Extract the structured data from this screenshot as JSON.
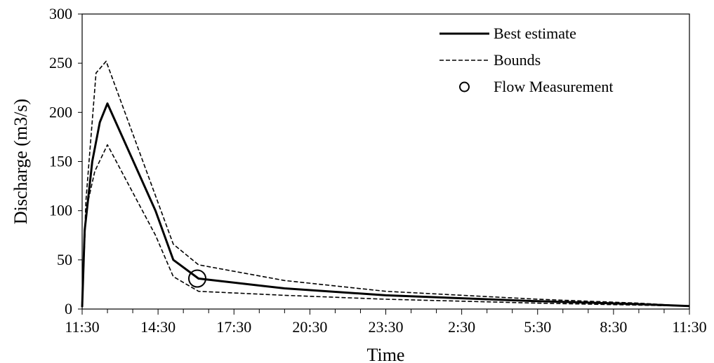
{
  "chart_data": {
    "type": "line",
    "title": "",
    "xlabel": "Time",
    "ylabel": "Discharge (m3/s)",
    "xlim": [
      0,
      24
    ],
    "ylim": [
      0,
      300
    ],
    "x_tick_labels": [
      "11:30",
      "14:30",
      "17:30",
      "20:30",
      "23:30",
      "2:30",
      "5:30",
      "8:30",
      "11:30"
    ],
    "y_ticks": [
      0,
      50,
      100,
      150,
      200,
      250,
      300
    ],
    "grid": false,
    "legend_position": "top-right",
    "series": [
      {
        "name": "Best estimate",
        "style": "solid",
        "points": [
          [
            0,
            2
          ],
          [
            0.1,
            80
          ],
          [
            0.4,
            150
          ],
          [
            0.7,
            190
          ],
          [
            1,
            209
          ],
          [
            2.9,
            100
          ],
          [
            3.6,
            50
          ],
          [
            4.6,
            31
          ],
          [
            8,
            21
          ],
          [
            12,
            14
          ],
          [
            18,
            8
          ],
          [
            22,
            5
          ],
          [
            24,
            3
          ]
        ]
      },
      {
        "name": "Bounds",
        "style": "dashed",
        "points": [
          [
            0,
            2
          ],
          [
            0.15,
            110
          ],
          [
            0.55,
            240
          ],
          [
            0.95,
            252
          ],
          [
            3.6,
            66
          ],
          [
            4.6,
            45
          ],
          [
            8,
            29
          ],
          [
            12,
            18
          ],
          [
            18,
            10
          ],
          [
            22,
            6
          ],
          [
            24,
            3
          ]
        ]
      },
      {
        "name": "",
        "legend": false,
        "style": "dashed",
        "points": [
          [
            0,
            2
          ],
          [
            0.15,
            100
          ],
          [
            0.5,
            140
          ],
          [
            1,
            167
          ],
          [
            2.9,
            75
          ],
          [
            3.6,
            33
          ],
          [
            4.6,
            18
          ],
          [
            8,
            14
          ],
          [
            12,
            10
          ],
          [
            18,
            6
          ],
          [
            22,
            4
          ],
          [
            24,
            3
          ]
        ]
      }
    ],
    "measurements": {
      "name": "Flow Measurement",
      "points": [
        [
          4.55,
          31
        ]
      ]
    },
    "style": {
      "line_color": "#000000",
      "background": "#ffffff"
    }
  }
}
